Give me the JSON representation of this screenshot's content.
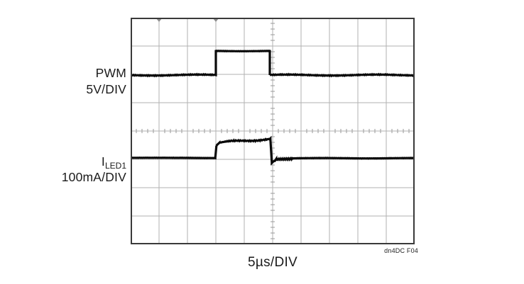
{
  "figure": {
    "background": "#ffffff",
    "colors": {
      "trace": "#0a0a0a",
      "grid_line": "#b2b2b2",
      "plot_border": "#3a3a3a",
      "minor_tick": "#9a9a9a",
      "top_marker": "#8e8e8e",
      "text": "#1a1a1a"
    },
    "labels": {
      "ch1_name": "PWM",
      "ch1_scale": "5V/DIV",
      "ch2_name_main": "I",
      "ch2_name_sub": "LED1",
      "ch2_scale": "100mA/DIV",
      "time_scale": "5µs/DIV",
      "fig_ref": "dn4DC F04"
    }
  },
  "chart_data": {
    "type": "line",
    "subtype": "oscilloscope",
    "title": "",
    "xlabel": "5µs/DIV",
    "ylabel": "",
    "legend": "none",
    "grid": {
      "x_divisions": 10,
      "y_divisions": 8,
      "minor_ticks_per_div": 5,
      "center_axes_ticked": true
    },
    "scales": {
      "time_per_div_us": 5,
      "ch1_per_div": "5V",
      "ch2_per_div": "100mA"
    },
    "x_range_us": [
      0,
      50
    ],
    "top_markers_us": [
      5,
      15
    ],
    "series": [
      {
        "name": "PWM",
        "scale_label": "5V/DIV",
        "unit": "V",
        "description": "Logic pulse: low until 15µs, high 15–24.5µs (~1 div = 5V step), low after",
        "segments": [
          {
            "t": [
              0,
              15
            ],
            "div": [
              1.975,
              1.975
            ],
            "noise": 0.028
          },
          {
            "t": [
              15,
              15
            ],
            "div": [
              1.975,
              2.825
            ],
            "noise": 0
          },
          {
            "t": [
              15,
              24.5
            ],
            "div": [
              2.825,
              2.825
            ],
            "noise": 0.012
          },
          {
            "t": [
              24.5,
              24.5
            ],
            "div": [
              2.825,
              1.975
            ],
            "noise": 0
          },
          {
            "t": [
              24.5,
              50
            ],
            "div": [
              1.975,
              1.975
            ],
            "noise": 0.028
          }
        ]
      },
      {
        "name": "ILED1",
        "scale_label": "100mA/DIV",
        "unit": "mA",
        "description": "LED current: flat baseline, rounded rise at ~15µs to ~+65mA with slow settle, sharp fall at ~24.8µs with small undershoot/ringing, back to baseline",
        "segments": [
          {
            "t": [
              0,
              14.9
            ],
            "div": [
              -0.95,
              -0.95
            ],
            "noise": 0.01
          },
          {
            "t": [
              14.9,
              15.1
            ],
            "div": [
              -0.95,
              -0.52
            ],
            "noise": 0
          },
          {
            "t": [
              15.1,
              15.6
            ],
            "div": [
              -0.52,
              -0.415
            ],
            "noise": 0.02
          },
          {
            "t": [
              15.6,
              17.5
            ],
            "div": [
              -0.415,
              -0.375
            ],
            "noise": 0.035
          },
          {
            "t": [
              17.5,
              24.6
            ],
            "div": [
              -0.375,
              -0.285
            ],
            "noise": 0.038
          },
          {
            "t": [
              24.6,
              24.85
            ],
            "div": [
              -0.285,
              -1.1
            ],
            "noise": 0
          },
          {
            "t": [
              24.85,
              25.6
            ],
            "div": [
              -1.1,
              -1.0
            ],
            "noise": 0.055
          },
          {
            "t": [
              25.6,
              28.5
            ],
            "div": [
              -1.02,
              -0.965
            ],
            "noise": 0.05
          },
          {
            "t": [
              28.5,
              50
            ],
            "div": [
              -0.96,
              -0.96
            ],
            "noise": 0.012
          }
        ]
      }
    ]
  }
}
